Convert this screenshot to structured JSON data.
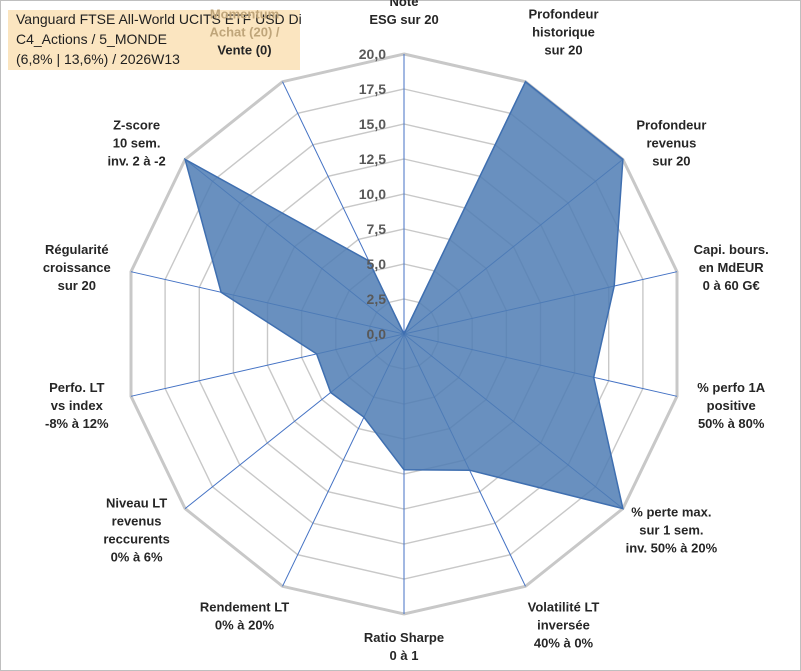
{
  "title_box": {
    "line1": "Vanguard FTSE All-World UCITS ETF USD Di",
    "line2": "C4_Actions / 5_MONDE",
    "line3": "(6,8% | 13,6%) / 2026W13"
  },
  "colors": {
    "fill": "#4f7cb4",
    "stroke": "#3f6fb0",
    "grid": "#c8c8c8",
    "spoke": "#4472c4",
    "title_bg": "#fbe5c0"
  },
  "chart_data": {
    "type": "radar",
    "range": [
      0,
      20
    ],
    "tick_step": 2.5,
    "tick_labels": [
      "0,0",
      "2,5",
      "5,0",
      "7,5",
      "10,0",
      "12,5",
      "15,0",
      "17,5",
      "20,0"
    ],
    "axes": [
      {
        "label": [
          "Note",
          "ESG sur 20"
        ],
        "value": 0
      },
      {
        "label": [
          "Profondeur",
          "historique",
          "sur 20"
        ],
        "value": 20
      },
      {
        "label": [
          "Profondeur",
          "revenus",
          "sur 20"
        ],
        "value": 20
      },
      {
        "label": [
          "Capi. bours.",
          "en MdEUR",
          "0 à 60 G€"
        ],
        "value": 15.4
      },
      {
        "label": [
          "% perfo 1A",
          "positive",
          "50% à 80%"
        ],
        "value": 13.9
      },
      {
        "label": [
          "% perte max.",
          "sur 1 sem.",
          "inv. 50% à 20%"
        ],
        "value": 20
      },
      {
        "label": [
          "Volatilité LT",
          "inversée",
          "40% à 0%"
        ],
        "value": 10.8
      },
      {
        "label": [
          "Ratio Sharpe",
          "0 à 1"
        ],
        "value": 9.7
      },
      {
        "label": [
          "Rendement LT",
          "0% à 20%"
        ],
        "value": 6.6
      },
      {
        "label": [
          "Niveau LT",
          "revenus",
          "reccurents",
          "0% à 6%"
        ],
        "value": 6.7
      },
      {
        "label": [
          "Perfo. LT",
          "vs index",
          "-8% à 12%"
        ],
        "value": 6.4
      },
      {
        "label": [
          "Régularité",
          "croissance",
          "sur 20"
        ],
        "value": 13.4
      },
      {
        "label": [
          "Z-score",
          "10 sem.",
          "inv. 2 à -2"
        ],
        "value": 20
      },
      {
        "label": [
          "Momentum",
          "Achat (20) /",
          "Vente (0)"
        ],
        "value": 5.8
      }
    ]
  }
}
